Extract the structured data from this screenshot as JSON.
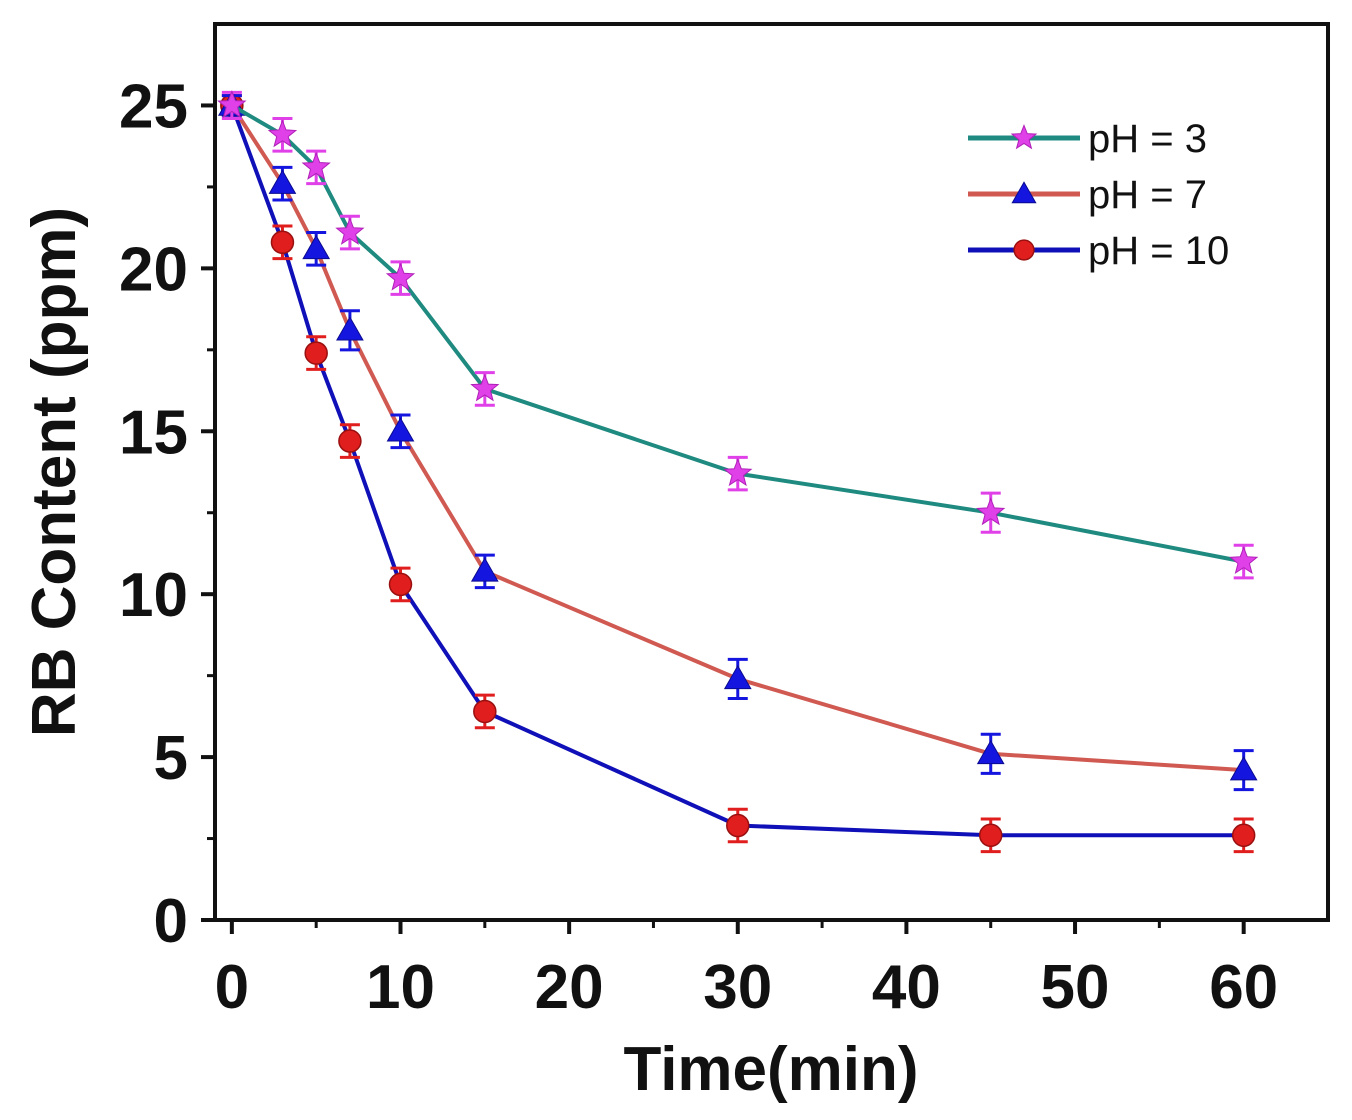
{
  "chart_data": {
    "type": "line",
    "title": "",
    "xlabel": "Time(min)",
    "ylabel": "RB Content (ppm)",
    "xlim": [
      -1,
      65
    ],
    "ylim": [
      0,
      27.5
    ],
    "xticks": [
      0,
      10,
      20,
      30,
      40,
      50,
      60
    ],
    "yticks": [
      0,
      5,
      10,
      15,
      20,
      25
    ],
    "xtick_labels": [
      "0",
      "10",
      "20",
      "30",
      "40",
      "50",
      "60"
    ],
    "ytick_labels": [
      "0",
      "5",
      "10",
      "15",
      "20",
      "25"
    ],
    "grid": false,
    "legend_position": "top-right",
    "x": [
      0,
      3,
      5,
      7,
      10,
      15,
      30,
      45,
      60
    ],
    "series": [
      {
        "name": "pH = 3",
        "line_color": "#1f8a80",
        "marker": "star",
        "marker_color": "#e040e8",
        "values": [
          25.0,
          24.1,
          23.1,
          21.1,
          19.7,
          16.3,
          13.7,
          12.5,
          11.0
        ],
        "errors": [
          0.4,
          0.5,
          0.5,
          0.5,
          0.5,
          0.5,
          0.5,
          0.6,
          0.5
        ]
      },
      {
        "name": "pH = 7",
        "line_color": "#d05a52",
        "marker": "triangle",
        "marker_color": "#1515e0",
        "values": [
          25.0,
          22.6,
          20.6,
          18.1,
          15.0,
          10.7,
          7.4,
          5.1,
          4.6
        ],
        "errors": [
          0.3,
          0.5,
          0.5,
          0.6,
          0.5,
          0.5,
          0.6,
          0.6,
          0.6
        ]
      },
      {
        "name": "pH = 10",
        "line_color": "#1010b8",
        "marker": "circle",
        "marker_color": "#e01e1e",
        "values": [
          25.0,
          20.8,
          17.4,
          14.7,
          10.3,
          6.4,
          2.9,
          2.6,
          2.6
        ],
        "errors": [
          0.3,
          0.5,
          0.5,
          0.5,
          0.5,
          0.5,
          0.5,
          0.5,
          0.5
        ]
      }
    ]
  }
}
